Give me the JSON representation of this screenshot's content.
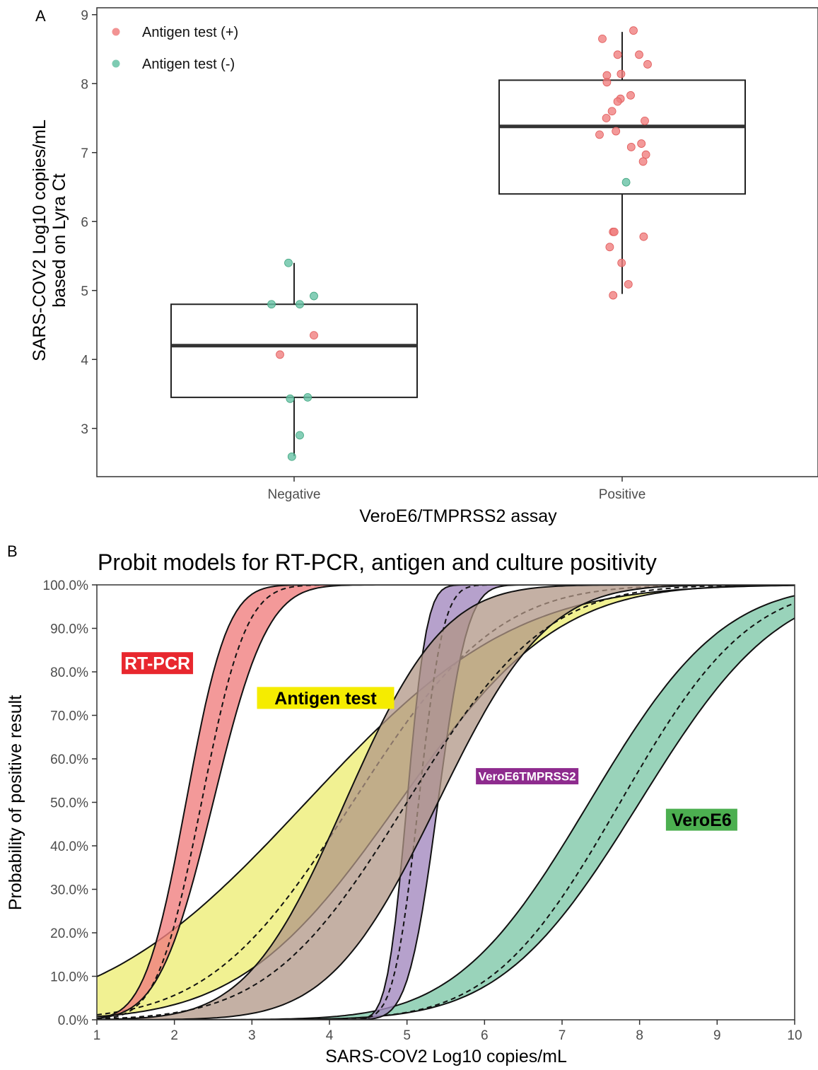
{
  "chart_data": [
    {
      "type": "box",
      "panel_label": "A",
      "xlabel": "VeroE6/TMPRSS2 assay",
      "ylabel_lines": [
        "SARS-COV2 Log10 copies/mL",
        "based on Lyra Ct"
      ],
      "ylim": [
        2.3,
        9.1
      ],
      "yticks": [
        "3",
        "4",
        "5",
        "6",
        "7",
        "8",
        "9"
      ],
      "categories": [
        "Negative",
        "Positive"
      ],
      "legend": {
        "position": "top-left",
        "entries": [
          {
            "label": "Antigen test (+)",
            "color": "#F08080"
          },
          {
            "label": "Antigen test (-)",
            "color": "#66C2A5"
          }
        ]
      },
      "boxes": [
        {
          "category": "Negative",
          "whisker_low": 2.6,
          "q1": 3.45,
          "median": 4.2,
          "q3": 4.8,
          "whisker_high": 5.4
        },
        {
          "category": "Positive",
          "whisker_low": 4.95,
          "q1": 6.4,
          "median": 7.38,
          "q3": 8.05,
          "whisker_high": 8.75
        }
      ],
      "points": [
        {
          "category": "Negative",
          "jitter": -0.4,
          "y": 4.8,
          "antigen": "-"
        },
        {
          "category": "Negative",
          "jitter": -0.1,
          "y": 5.4,
          "antigen": "-"
        },
        {
          "category": "Negative",
          "jitter": 0.1,
          "y": 4.8,
          "antigen": "-"
        },
        {
          "category": "Negative",
          "jitter": 0.35,
          "y": 4.92,
          "antigen": "-"
        },
        {
          "category": "Negative",
          "jitter": 0.35,
          "y": 4.35,
          "antigen": "+"
        },
        {
          "category": "Negative",
          "jitter": -0.25,
          "y": 4.07,
          "antigen": "+"
        },
        {
          "category": "Negative",
          "jitter": -0.07,
          "y": 3.43,
          "antigen": "-"
        },
        {
          "category": "Negative",
          "jitter": 0.24,
          "y": 3.45,
          "antigen": "-"
        },
        {
          "category": "Negative",
          "jitter": 0.1,
          "y": 2.9,
          "antigen": "-"
        },
        {
          "category": "Negative",
          "jitter": -0.04,
          "y": 2.59,
          "antigen": "-"
        },
        {
          "category": "Positive",
          "jitter": 0.2,
          "y": 8.77,
          "antigen": "+"
        },
        {
          "category": "Positive",
          "jitter": -0.35,
          "y": 8.65,
          "antigen": "+"
        },
        {
          "category": "Positive",
          "jitter": -0.08,
          "y": 8.42,
          "antigen": "+"
        },
        {
          "category": "Positive",
          "jitter": 0.3,
          "y": 8.42,
          "antigen": "+"
        },
        {
          "category": "Positive",
          "jitter": 0.45,
          "y": 8.28,
          "antigen": "+"
        },
        {
          "category": "Positive",
          "jitter": -0.27,
          "y": 8.12,
          "antigen": "+"
        },
        {
          "category": "Positive",
          "jitter": -0.02,
          "y": 8.14,
          "antigen": "+"
        },
        {
          "category": "Positive",
          "jitter": -0.27,
          "y": 8.02,
          "antigen": "+"
        },
        {
          "category": "Positive",
          "jitter": 0.15,
          "y": 7.83,
          "antigen": "+"
        },
        {
          "category": "Positive",
          "jitter": -0.03,
          "y": 7.78,
          "antigen": "+"
        },
        {
          "category": "Positive",
          "jitter": -0.08,
          "y": 7.74,
          "antigen": "+"
        },
        {
          "category": "Positive",
          "jitter": -0.18,
          "y": 7.6,
          "antigen": "+"
        },
        {
          "category": "Positive",
          "jitter": -0.28,
          "y": 7.5,
          "antigen": "+"
        },
        {
          "category": "Positive",
          "jitter": 0.4,
          "y": 7.46,
          "antigen": "+"
        },
        {
          "category": "Positive",
          "jitter": -0.11,
          "y": 7.31,
          "antigen": "+"
        },
        {
          "category": "Positive",
          "jitter": -0.4,
          "y": 7.26,
          "antigen": "+"
        },
        {
          "category": "Positive",
          "jitter": 0.34,
          "y": 7.13,
          "antigen": "+"
        },
        {
          "category": "Positive",
          "jitter": 0.16,
          "y": 7.08,
          "antigen": "+"
        },
        {
          "category": "Positive",
          "jitter": 0.42,
          "y": 6.97,
          "antigen": "+"
        },
        {
          "category": "Positive",
          "jitter": 0.37,
          "y": 6.87,
          "antigen": "+"
        },
        {
          "category": "Positive",
          "jitter": 0.07,
          "y": 6.57,
          "antigen": "-"
        },
        {
          "category": "Positive",
          "jitter": -0.16,
          "y": 5.85,
          "antigen": "+"
        },
        {
          "category": "Positive",
          "jitter": -0.14,
          "y": 5.85,
          "antigen": "+"
        },
        {
          "category": "Positive",
          "jitter": 0.38,
          "y": 5.78,
          "antigen": "+"
        },
        {
          "category": "Positive",
          "jitter": -0.22,
          "y": 5.63,
          "antigen": "+"
        },
        {
          "category": "Positive",
          "jitter": -0.01,
          "y": 5.4,
          "antigen": "+"
        },
        {
          "category": "Positive",
          "jitter": 0.11,
          "y": 5.09,
          "antigen": "+"
        },
        {
          "category": "Positive",
          "jitter": -0.16,
          "y": 4.93,
          "antigen": "+"
        }
      ]
    },
    {
      "type": "area",
      "panel_label": "B",
      "title": "Probit models for RT-PCR, antigen and culture positivity",
      "xlabel": "SARS-COV2 Log10 copies/mL",
      "ylabel": "Probability of positive result",
      "xlim": [
        1,
        10
      ],
      "ylim": [
        0,
        1
      ],
      "xticks": [
        "1",
        "2",
        "3",
        "4",
        "5",
        "6",
        "7",
        "8",
        "9",
        "10"
      ],
      "yticks": [
        "0.0%",
        "10.0%",
        "20.0%",
        "30.0%",
        "40.0%",
        "50.0%",
        "60.0%",
        "70.0%",
        "80.0%",
        "90.0%",
        "100.0%"
      ],
      "grid": false,
      "series": [
        {
          "name": "Antigen test",
          "color": "#EEEE77",
          "label_bg": "#F5EC00",
          "label_fg": "#000000",
          "label_at": [
            3.95,
            0.74
          ],
          "label_size": 25,
          "lower": {
            "mu": 4.9,
            "sigma": 1.6
          },
          "mid": {
            "mu": 4.3,
            "sigma": 1.45
          },
          "upper": {
            "mu": 3.7,
            "sigma": 2.1
          },
          "order": 1
        },
        {
          "name": "VeroE6",
          "color": "#7FC8A9",
          "label_bg": "#4CAF50",
          "label_fg": "#000000",
          "label_at": [
            8.8,
            0.46
          ],
          "label_size": 25,
          "lower": {
            "mu": 8.0,
            "sigma": 1.4
          },
          "mid": {
            "mu": 7.75,
            "sigma": 1.3
          },
          "upper": {
            "mu": 7.35,
            "sigma": 1.35
          },
          "order": 2
        },
        {
          "name": "VeroE6TMPRSS2",
          "color": "#A48ABF",
          "label_bg": "#8E2B8E",
          "label_fg": "#ffffff",
          "label_at": [
            6.55,
            0.56
          ],
          "label_size": 17,
          "lower": {
            "mu": 5.4,
            "sigma": 0.3
          },
          "mid": {
            "mu": 5.15,
            "sigma": 0.25
          },
          "upper": {
            "mu": 5.0,
            "sigma": 0.2
          },
          "order": 3
        },
        {
          "name": "RT-PCR",
          "color": "#F08080",
          "label_bg": "#E8272E",
          "label_fg": "#ffffff",
          "label_at": [
            1.78,
            0.82
          ],
          "label_size": 25,
          "lower": {
            "mu": 2.5,
            "sigma": 0.55
          },
          "mid": {
            "mu": 2.35,
            "sigma": 0.45
          },
          "upper": {
            "mu": 2.15,
            "sigma": 0.42
          },
          "order": 4
        },
        {
          "name": "",
          "color": "#B09685",
          "overlay": true,
          "lower": {
            "mu": 5.4,
            "sigma": 1.1
          },
          "mid": {
            "mu": 5.0,
            "sigma": 1.4
          },
          "upper": {
            "mu": 4.2,
            "sigma": 1.0
          },
          "order": 5
        }
      ]
    }
  ]
}
